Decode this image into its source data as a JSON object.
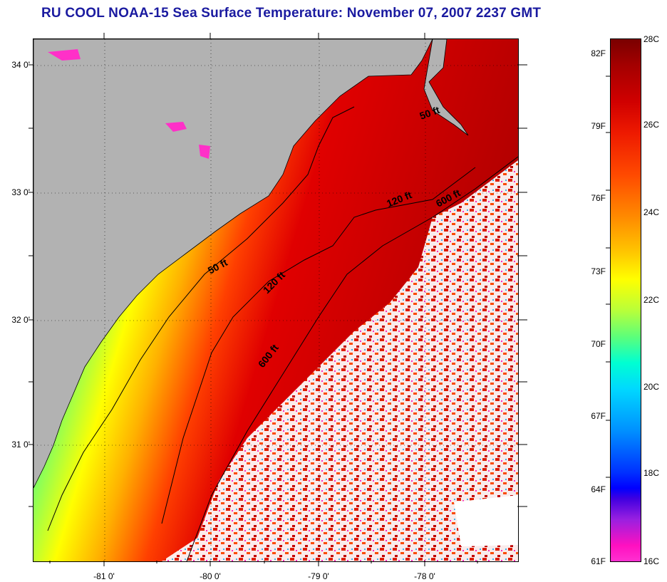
{
  "title": "RU COOL  NOAA-15  Sea Surface Temperature:  November 07, 2007 2237 GMT",
  "map": {
    "latitude_labels": [
      "34 0'",
      "33 0'",
      "32 0'",
      "31 0'"
    ],
    "longitude_labels": [
      "-81 0'",
      "-80 0'",
      "-79 0'",
      "-78 0'"
    ],
    "contour_labels": [
      "50 ft",
      "120 ft",
      "600 ft",
      "50 ft",
      "120 ft",
      "600 ft"
    ],
    "colors": {
      "land": "#b2b2b2",
      "cloud": "#ffffff"
    }
  },
  "colorbar": {
    "fahrenheit_labels": [
      "82F",
      "79F",
      "76F",
      "73F",
      "70F",
      "67F",
      "64F",
      "61F"
    ],
    "celsius_labels": [
      "28C",
      "26C",
      "24C",
      "22C",
      "20C",
      "18C",
      "16C"
    ]
  }
}
